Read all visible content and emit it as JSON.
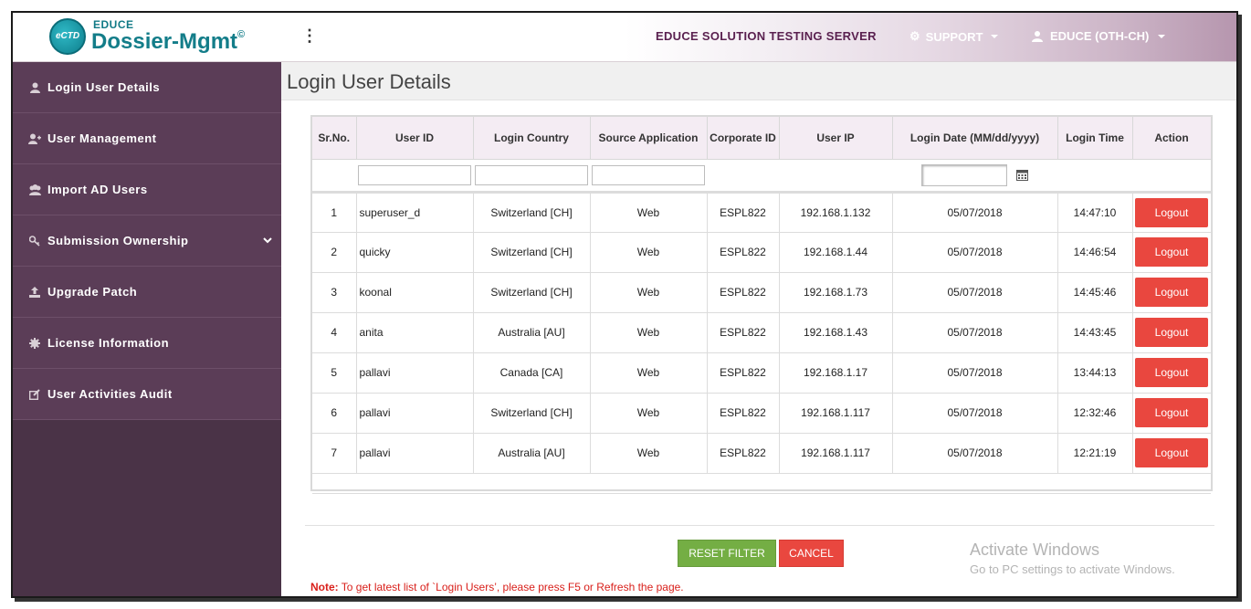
{
  "header": {
    "logo_small": "EDUCE",
    "logo_badge": "eCTD",
    "logo_title": "Dossier-Mgmt",
    "logo_copyright": "©",
    "server_name": "EDUCE SOLUTION TESTING SERVER",
    "support_label": "SUPPORT",
    "user_label": "EDUCE (OTH-CH)"
  },
  "sidebar": {
    "items": [
      {
        "label": "Login User Details",
        "icon": "user-icon"
      },
      {
        "label": "User Management",
        "icon": "user-plus-icon"
      },
      {
        "label": "Import AD Users",
        "icon": "users-icon"
      },
      {
        "label": "Submission Ownership",
        "icon": "key-icon"
      },
      {
        "label": "Upgrade Patch",
        "icon": "upload-icon"
      },
      {
        "label": "License Information",
        "icon": "gear-icon"
      },
      {
        "label": "User Activities Audit",
        "icon": "edit-icon"
      }
    ]
  },
  "main": {
    "title": "Login User Details",
    "columns": [
      "Sr.No.",
      "User ID",
      "Login Country",
      "Source Application",
      "Corporate ID",
      "User IP",
      "Login Date (MM/dd/yyyy)",
      "Login Time",
      "Action"
    ],
    "rows": [
      {
        "sr": "1",
        "user_id": "superuser_d",
        "country": "Switzerland [CH]",
        "source": "Web",
        "corp_id": "ESPL822",
        "ip": "192.168.1.132",
        "date": "05/07/2018",
        "time": "14:47:10",
        "action": "Logout"
      },
      {
        "sr": "2",
        "user_id": "quicky",
        "country": "Switzerland [CH]",
        "source": "Web",
        "corp_id": "ESPL822",
        "ip": "192.168.1.44",
        "date": "05/07/2018",
        "time": "14:46:54",
        "action": "Logout"
      },
      {
        "sr": "3",
        "user_id": "koonal",
        "country": "Switzerland [CH]",
        "source": "Web",
        "corp_id": "ESPL822",
        "ip": "192.168.1.73",
        "date": "05/07/2018",
        "time": "14:45:46",
        "action": "Logout"
      },
      {
        "sr": "4",
        "user_id": "anita",
        "country": "Australia [AU]",
        "source": "Web",
        "corp_id": "ESPL822",
        "ip": "192.168.1.43",
        "date": "05/07/2018",
        "time": "14:43:45",
        "action": "Logout"
      },
      {
        "sr": "5",
        "user_id": "pallavi",
        "country": "Canada [CA]",
        "source": "Web",
        "corp_id": "ESPL822",
        "ip": "192.168.1.17",
        "date": "05/07/2018",
        "time": "13:44:13",
        "action": "Logout"
      },
      {
        "sr": "6",
        "user_id": "pallavi",
        "country": "Switzerland [CH]",
        "source": "Web",
        "corp_id": "ESPL822",
        "ip": "192.168.1.117",
        "date": "05/07/2018",
        "time": "12:32:46",
        "action": "Logout"
      },
      {
        "sr": "7",
        "user_id": "pallavi",
        "country": "Australia [AU]",
        "source": "Web",
        "corp_id": "ESPL822",
        "ip": "192.168.1.117",
        "date": "05/07/2018",
        "time": "12:21:19",
        "action": "Logout"
      }
    ],
    "reset_filter_label": "RESET FILTER",
    "cancel_label": "CANCEL",
    "note_label": "Note:",
    "note_text": " To get latest list of `Login Users’, please press F5 or Refresh the page.",
    "watermark_title": "Activate Windows",
    "watermark_sub": "Go to PC settings to activate Windows."
  },
  "colors": {
    "sidebar_bg": "#5b3d57",
    "header_accent": "#5a2150",
    "logout_red": "#e9473f",
    "reset_green": "#74ae44",
    "note_red": "#d9201b"
  }
}
